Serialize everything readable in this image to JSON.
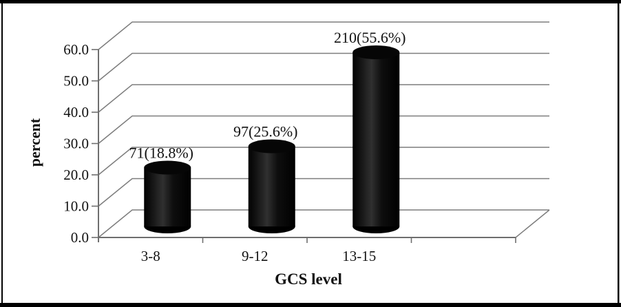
{
  "chart_data": {
    "type": "bar",
    "subtype": "3d-cylinder-column",
    "title": "",
    "categories": [
      "3-8",
      "9-12",
      "13-15"
    ],
    "values": [
      18.8,
      25.6,
      55.6
    ],
    "counts": [
      71,
      97,
      210
    ],
    "data_labels": [
      "71(18.8%)",
      "97(25.6%)",
      "210(55.6%)"
    ],
    "xlabel": "GCS level",
    "ylabel": "percent",
    "ytick_labels": [
      "0.0",
      "10.0",
      "20.0",
      "30.0",
      "40.0",
      "50.0",
      "60.0"
    ],
    "ylim": [
      0,
      60
    ],
    "grid": true,
    "legend_position": "none",
    "bar_color": "#000000",
    "gridline_color": "#7d7d7d",
    "axis_color": "#6e6e6e",
    "text_color": "#121212",
    "background": "#ffffff",
    "frame_color": "#000000"
  }
}
